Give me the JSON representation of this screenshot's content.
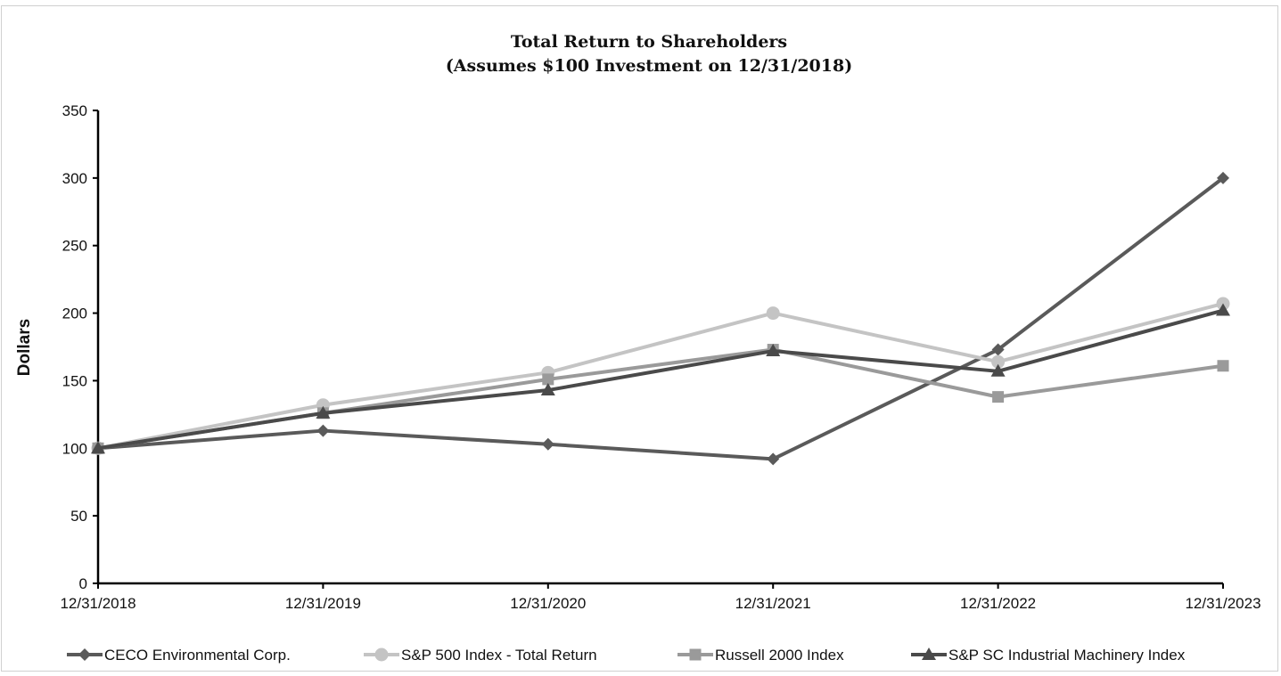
{
  "chart_data": {
    "type": "line",
    "title": "Total Return to Shareholders",
    "subtitle": "(Assumes $100 Investment on 12/31/2018)",
    "xlabel": "",
    "ylabel": "Dollars",
    "ylim": [
      0,
      350
    ],
    "yticks": [
      "0",
      "50",
      "100",
      "150",
      "200",
      "250",
      "300",
      "350"
    ],
    "categories": [
      "12/31/2018",
      "12/31/2019",
      "12/31/2020",
      "12/31/2021",
      "12/31/2022",
      "12/31/2023"
    ],
    "grid": false,
    "legend_position": "bottom",
    "series": [
      {
        "name": "CECO Environmental Corp.",
        "marker": "diamond",
        "color": "#5a5a5a",
        "values": [
          100,
          113,
          103,
          92,
          173,
          300
        ]
      },
      {
        "name": "S&P 500 Index - Total Return",
        "marker": "circle",
        "color": "#c4c4c4",
        "values": [
          100,
          132,
          156,
          200,
          164,
          207
        ]
      },
      {
        "name": "Russell 2000 Index",
        "marker": "square",
        "color": "#9a9a9a",
        "values": [
          100,
          126,
          151,
          173,
          138,
          161
        ]
      },
      {
        "name": "S&P SC Industrial Machinery Index",
        "marker": "triangle",
        "color": "#4a4a4a",
        "values": [
          100,
          126,
          143,
          172,
          157,
          202
        ]
      }
    ]
  }
}
